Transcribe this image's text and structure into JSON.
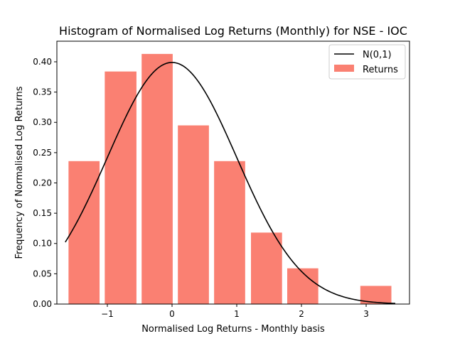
{
  "chart_data": {
    "type": "bar",
    "title": "Histogram of Normalised Log Returns (Monthly) for NSE - IOC",
    "xlabel": "Normalised Log Returns - Monthly basis",
    "ylabel": "Frequency of Normalised Log Returns",
    "xlim": [
      -1.78,
      3.67
    ],
    "ylim": [
      0,
      0.434
    ],
    "xticks": [
      -1,
      0,
      1,
      2,
      3
    ],
    "xtick_labels": [
      "−1",
      "0",
      "1",
      "2",
      "3"
    ],
    "yticks": [
      0.0,
      0.05,
      0.1,
      0.15,
      0.2,
      0.25,
      0.3,
      0.35,
      0.4
    ],
    "ytick_labels": [
      "0.00",
      "0.05",
      "0.10",
      "0.15",
      "0.20",
      "0.25",
      "0.30",
      "0.35",
      "0.40"
    ],
    "bars": [
      {
        "x0": -1.6,
        "x1": -1.12,
        "value": 0.236
      },
      {
        "x0": -1.04,
        "x1": -0.55,
        "value": 0.384
      },
      {
        "x0": -0.47,
        "x1": 0.01,
        "value": 0.413
      },
      {
        "x0": 0.09,
        "x1": 0.57,
        "value": 0.295
      },
      {
        "x0": 0.65,
        "x1": 1.13,
        "value": 0.236
      },
      {
        "x0": 1.22,
        "x1": 1.7,
        "value": 0.118
      },
      {
        "x0": 1.78,
        "x1": 2.26,
        "value": 0.059
      },
      {
        "x0": 2.91,
        "x1": 3.39,
        "value": 0.03
      }
    ],
    "curve": {
      "name": "N(0,1)",
      "mean": 0,
      "sd": 1,
      "x_range": [
        -1.65,
        3.45
      ]
    },
    "series": [
      {
        "name": "N(0,1)",
        "type": "line",
        "color": "#000000"
      },
      {
        "name": "Returns",
        "type": "bar",
        "color": "#fa8072"
      }
    ],
    "legend": "top-right",
    "grid": false
  }
}
